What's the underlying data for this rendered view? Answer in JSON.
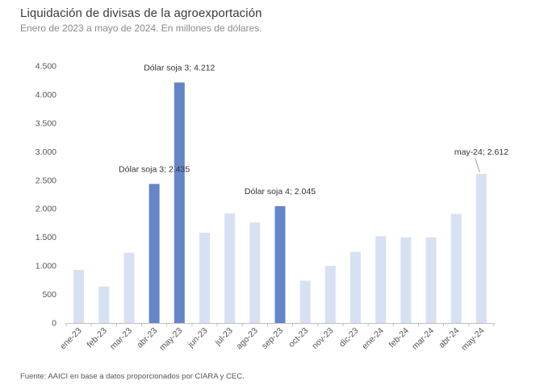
{
  "header": {
    "title": "Liquidación de divisas de la agroexportación",
    "subtitle": "Enero de 2023 a mayo de 2024. En millones de dólares."
  },
  "footer": {
    "source": "Fuente: AAICI en base a datos proporcionados por CIARA y CEC."
  },
  "chart_data": {
    "type": "bar",
    "title": "Liquidación de divisas de la agroexportación",
    "subtitle": "Enero de 2023 a mayo de 2024. En millones de dólares.",
    "xlabel": "",
    "ylabel": "",
    "ylim": [
      0,
      4500
    ],
    "yticks": [
      0,
      500,
      1000,
      1500,
      2000,
      2500,
      3000,
      3500,
      4000,
      4500
    ],
    "ytick_labels": [
      "0",
      "500",
      "1.000",
      "1.500",
      "2.000",
      "2.500",
      "3.000",
      "3.500",
      "4.000",
      "4.500"
    ],
    "grid": false,
    "legend": "none",
    "categories": [
      "ene-23",
      "feb-23",
      "mar-23",
      "abr-23",
      "may-23",
      "jun-23",
      "jul-23",
      "ago-23",
      "sep-23",
      "oct-23",
      "nov-23",
      "dic-23",
      "ene-24",
      "feb-24",
      "mar-24",
      "abr-24",
      "may-24"
    ],
    "values": [
      930,
      640,
      1230,
      2435,
      4212,
      1580,
      1920,
      1760,
      2045,
      740,
      1000,
      1245,
      1520,
      1500,
      1500,
      1910,
      2612
    ],
    "highlighted": [
      false,
      false,
      false,
      true,
      true,
      false,
      false,
      false,
      true,
      false,
      false,
      false,
      false,
      false,
      false,
      false,
      false
    ],
    "colors": {
      "base": "#d6e1f4",
      "highlight": "#6485c8",
      "axis": "#bfbfbf"
    },
    "annotations": [
      {
        "index": 3,
        "text": "Dólar soja 3; 2.435"
      },
      {
        "index": 4,
        "text": "Dólar soja 3; 4.212"
      },
      {
        "index": 8,
        "text": "Dólar soja 4; 2.045"
      },
      {
        "index": 16,
        "text": "may-24; 2.612"
      }
    ]
  }
}
